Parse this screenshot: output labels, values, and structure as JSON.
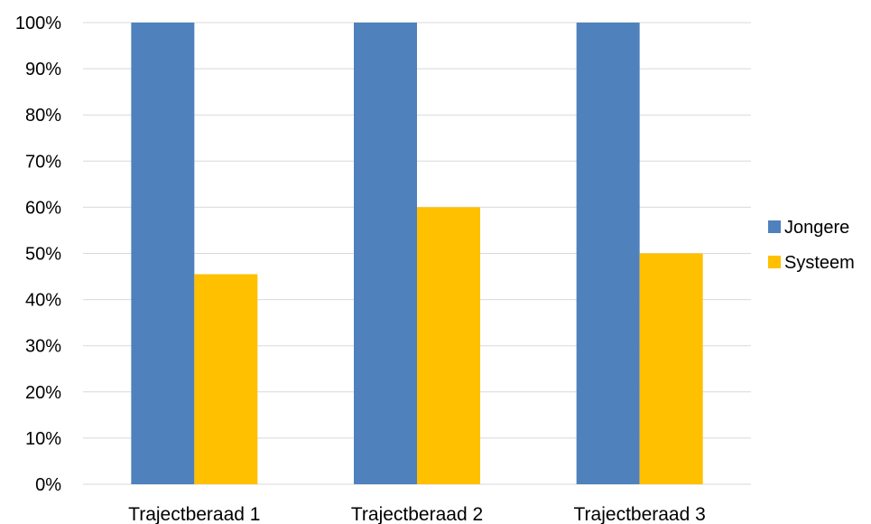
{
  "chart_data": {
    "type": "bar",
    "categories": [
      "Trajectberaad 1",
      "Trajectberaad 2",
      "Trajectberaad 3"
    ],
    "series": [
      {
        "name": "Jongere",
        "values": [
          100,
          100,
          100
        ],
        "color": "#4f81bd"
      },
      {
        "name": "Systeem",
        "values": [
          45.5,
          60,
          50
        ],
        "color": "#ffc000"
      }
    ],
    "yticks": [
      "0%",
      "10%",
      "20%",
      "30%",
      "40%",
      "50%",
      "60%",
      "70%",
      "80%",
      "90%",
      "100%"
    ],
    "ylim": [
      0,
      100
    ],
    "grid": true,
    "legend_position": "right"
  }
}
